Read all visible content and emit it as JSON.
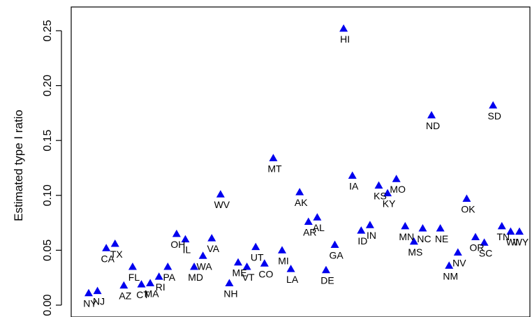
{
  "chart_data": {
    "type": "scatter",
    "title": "",
    "xlabel": "",
    "ylabel": "Estimated type I ratio",
    "x_axis_shown": false,
    "ylim": [
      0,
      0.26
    ],
    "yticks": [
      0.0,
      0.05,
      0.1,
      0.15,
      0.2,
      0.25
    ],
    "ytick_labels": [
      "0.00",
      "0.05",
      "0.10",
      "0.15",
      "0.20",
      "0.25"
    ],
    "grid": false,
    "marker": "triangle",
    "marker_color": "#0000ee",
    "points": [
      {
        "label": "NY",
        "x": 1,
        "y": 0.011
      },
      {
        "label": "NJ",
        "x": 2,
        "y": 0.013
      },
      {
        "label": "CA",
        "x": 3,
        "y": 0.052
      },
      {
        "label": "TX",
        "x": 4,
        "y": 0.056
      },
      {
        "label": "AZ",
        "x": 5,
        "y": 0.018
      },
      {
        "label": "FL",
        "x": 6,
        "y": 0.035
      },
      {
        "label": "CT",
        "x": 7,
        "y": 0.019
      },
      {
        "label": "MA",
        "x": 8,
        "y": 0.02
      },
      {
        "label": "RI",
        "x": 9,
        "y": 0.026
      },
      {
        "label": "PA",
        "x": 10,
        "y": 0.035
      },
      {
        "label": "OH",
        "x": 11,
        "y": 0.065
      },
      {
        "label": "IL",
        "x": 12,
        "y": 0.06
      },
      {
        "label": "MD",
        "x": 13,
        "y": 0.035
      },
      {
        "label": "WA",
        "x": 14,
        "y": 0.045
      },
      {
        "label": "VA",
        "x": 15,
        "y": 0.061
      },
      {
        "label": "WV",
        "x": 16,
        "y": 0.101
      },
      {
        "label": "NH",
        "x": 17,
        "y": 0.02
      },
      {
        "label": "ME",
        "x": 18,
        "y": 0.039
      },
      {
        "label": "VT",
        "x": 19,
        "y": 0.035
      },
      {
        "label": "UT",
        "x": 20,
        "y": 0.053
      },
      {
        "label": "CO",
        "x": 21,
        "y": 0.038
      },
      {
        "label": "MT",
        "x": 22,
        "y": 0.134
      },
      {
        "label": "MI",
        "x": 23,
        "y": 0.05
      },
      {
        "label": "LA",
        "x": 24,
        "y": 0.033
      },
      {
        "label": "AK",
        "x": 25,
        "y": 0.103
      },
      {
        "label": "AR",
        "x": 26,
        "y": 0.076
      },
      {
        "label": "AL",
        "x": 27,
        "y": 0.08
      },
      {
        "label": "DE",
        "x": 28,
        "y": 0.032
      },
      {
        "label": "GA",
        "x": 29,
        "y": 0.055
      },
      {
        "label": "HI",
        "x": 30,
        "y": 0.252
      },
      {
        "label": "IA",
        "x": 31,
        "y": 0.118
      },
      {
        "label": "ID",
        "x": 32,
        "y": 0.068
      },
      {
        "label": "IN",
        "x": 33,
        "y": 0.073
      },
      {
        "label": "KS",
        "x": 34,
        "y": 0.109
      },
      {
        "label": "KY",
        "x": 35,
        "y": 0.102
      },
      {
        "label": "MO",
        "x": 36,
        "y": 0.115
      },
      {
        "label": "MN",
        "x": 37,
        "y": 0.072
      },
      {
        "label": "MS",
        "x": 38,
        "y": 0.058
      },
      {
        "label": "NC",
        "x": 39,
        "y": 0.07
      },
      {
        "label": "ND",
        "x": 40,
        "y": 0.173
      },
      {
        "label": "NE",
        "x": 41,
        "y": 0.07
      },
      {
        "label": "NM",
        "x": 42,
        "y": 0.036
      },
      {
        "label": "NV",
        "x": 43,
        "y": 0.048
      },
      {
        "label": "OK",
        "x": 44,
        "y": 0.097
      },
      {
        "label": "OR",
        "x": 45,
        "y": 0.062
      },
      {
        "label": "SC",
        "x": 46,
        "y": 0.057
      },
      {
        "label": "SD",
        "x": 47,
        "y": 0.182
      },
      {
        "label": "TN",
        "x": 48,
        "y": 0.072
      },
      {
        "label": "WI",
        "x": 49,
        "y": 0.067
      },
      {
        "label": "WY",
        "x": 50,
        "y": 0.067
      }
    ]
  }
}
